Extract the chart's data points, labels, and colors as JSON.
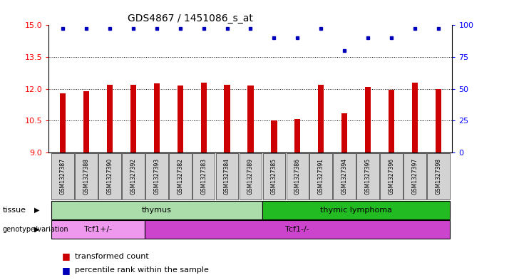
{
  "title": "GDS4867 / 1451086_s_at",
  "samples": [
    "GSM1327387",
    "GSM1327388",
    "GSM1327390",
    "GSM1327392",
    "GSM1327393",
    "GSM1327382",
    "GSM1327383",
    "GSM1327384",
    "GSM1327389",
    "GSM1327385",
    "GSM1327386",
    "GSM1327391",
    "GSM1327394",
    "GSM1327395",
    "GSM1327396",
    "GSM1327397",
    "GSM1327398"
  ],
  "bar_values": [
    11.8,
    11.9,
    12.2,
    12.2,
    12.25,
    12.15,
    12.3,
    12.2,
    12.15,
    10.5,
    10.6,
    12.2,
    10.85,
    12.1,
    11.95,
    12.3,
    12.0
  ],
  "dot_yvals": [
    14.85,
    14.85,
    14.85,
    14.85,
    14.85,
    14.85,
    14.85,
    14.85,
    14.85,
    14.4,
    14.4,
    14.85,
    13.8,
    14.4,
    14.4,
    14.85,
    14.85
  ],
  "ylim_left": [
    9,
    15
  ],
  "ylim_right": [
    0,
    100
  ],
  "yticks_left": [
    9,
    10.5,
    12,
    13.5,
    15
  ],
  "yticks_right": [
    0,
    25,
    50,
    75,
    100
  ],
  "bar_color": "#cc0000",
  "dot_color": "#0000bb",
  "background_color": "#ffffff",
  "tissue_groups": [
    {
      "label": "thymus",
      "start": 0,
      "end": 9,
      "color": "#aaddaa"
    },
    {
      "label": "thymic lymphoma",
      "start": 9,
      "end": 17,
      "color": "#22bb22"
    }
  ],
  "genotype_groups": [
    {
      "label": "Tcf1+/-",
      "start": 0,
      "end": 4,
      "color": "#ee99ee"
    },
    {
      "label": "Tcf1-/-",
      "start": 4,
      "end": 17,
      "color": "#cc44cc"
    }
  ],
  "tissue_label": "tissue",
  "genotype_label": "genotype/variation",
  "legend_red_label": "transformed count",
  "legend_blue_label": "percentile rank within the sample",
  "tick_label_bg": "#d3d3d3",
  "bar_width": 0.25
}
